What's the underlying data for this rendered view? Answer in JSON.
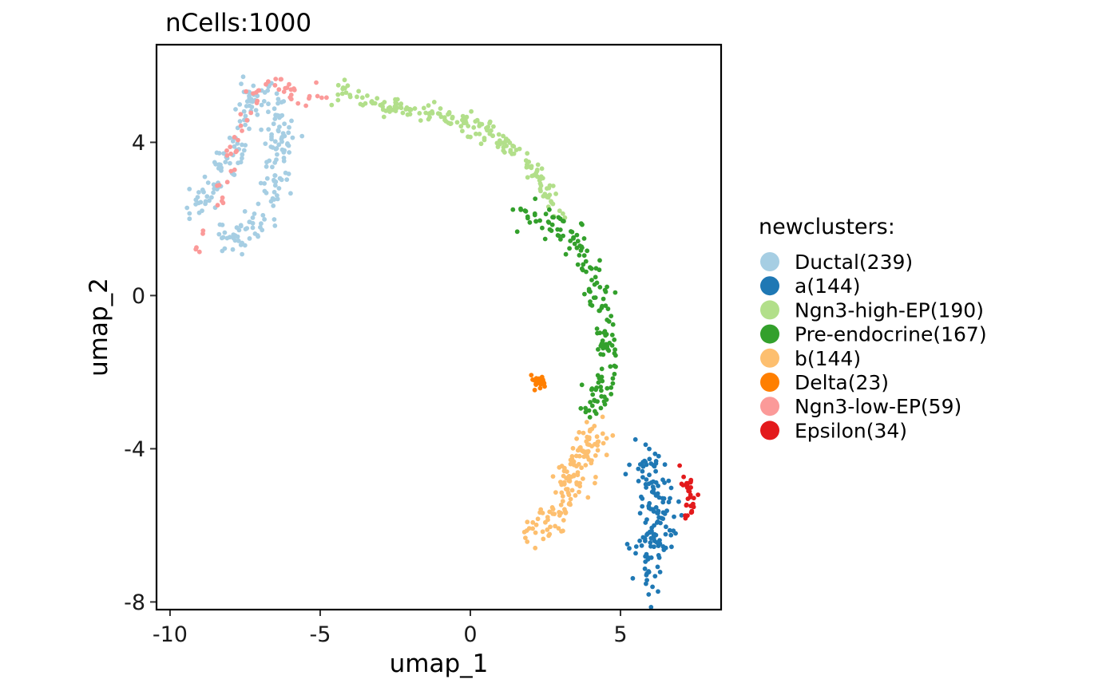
{
  "chart_data": {
    "type": "scatter",
    "title": "nCells:1000",
    "xlabel": "umap_1",
    "ylabel": "umap_2",
    "xlim": [
      -10.45,
      8.35
    ],
    "ylim": [
      -8.2,
      6.55
    ],
    "xticks": [
      {
        "value": -10,
        "label": "-10"
      },
      {
        "value": -5,
        "label": "-5"
      },
      {
        "value": 0,
        "label": "0"
      },
      {
        "value": 5,
        "label": "5"
      }
    ],
    "yticks": [
      {
        "value": -8,
        "label": "-8"
      },
      {
        "value": -4,
        "label": "-4"
      },
      {
        "value": 0,
        "label": "0"
      },
      {
        "value": 4,
        "label": "4"
      }
    ],
    "grid": false,
    "legend": {
      "title": "newclusters:",
      "placement": "right"
    },
    "series": [
      {
        "name": "Ductal(239)",
        "color": "#A6CEE3",
        "count": 239,
        "path": [
          [
            -9.3,
            2.3
          ],
          [
            -8.8,
            2.6
          ],
          [
            -8.3,
            3.3
          ],
          [
            -7.8,
            3.6
          ],
          [
            -7.5,
            4.6
          ],
          [
            -7.2,
            5.3
          ],
          [
            -6.6,
            5.2
          ],
          [
            -6.3,
            4.4
          ],
          [
            -6.5,
            3.1
          ],
          [
            -6.9,
            2.1
          ],
          [
            -7.6,
            1.5
          ],
          [
            -8.5,
            1.5
          ]
        ],
        "spread": 0.22
      },
      {
        "name": "a(144)",
        "color": "#1F78B4",
        "count": 144,
        "path": [
          [
            5.6,
            -4.2
          ],
          [
            6.1,
            -4.8
          ],
          [
            6.3,
            -5.5
          ],
          [
            6.1,
            -6.2
          ],
          [
            6.0,
            -6.9
          ],
          [
            5.9,
            -7.4
          ]
        ],
        "spread": 0.3
      },
      {
        "name": "Ngn3-high-EP(190)",
        "color": "#B2DF8A",
        "count": 190,
        "path": [
          [
            -4.5,
            5.3
          ],
          [
            -3.5,
            5.05
          ],
          [
            -2.0,
            4.85
          ],
          [
            -0.5,
            4.6
          ],
          [
            0.8,
            4.15
          ],
          [
            1.8,
            3.6
          ],
          [
            2.5,
            2.8
          ],
          [
            2.9,
            2.2
          ]
        ],
        "spread": 0.13
      },
      {
        "name": "Pre-endocrine(167)",
        "color": "#33A02C",
        "count": 167,
        "path": [
          [
            1.8,
            2.1
          ],
          [
            3.2,
            1.7
          ],
          [
            3.6,
            1.1
          ],
          [
            4.0,
            0.5
          ],
          [
            4.3,
            -0.3
          ],
          [
            4.55,
            -1.2
          ],
          [
            4.65,
            -2.1
          ],
          [
            4.2,
            -2.8
          ],
          [
            3.8,
            -3.0
          ]
        ],
        "spread": 0.22
      },
      {
        "name": "b(144)",
        "color": "#FDBF6F",
        "count": 144,
        "path": [
          [
            4.4,
            -3.5
          ],
          [
            3.8,
            -4.0
          ],
          [
            3.4,
            -4.8
          ],
          [
            3.0,
            -5.5
          ],
          [
            2.4,
            -6.0
          ],
          [
            1.9,
            -6.3
          ]
        ],
        "spread": 0.26
      },
      {
        "name": "Delta(23)",
        "color": "#FF7F00",
        "count": 23,
        "path": [
          [
            2.0,
            -2.4
          ],
          [
            2.25,
            -2.2
          ],
          [
            2.5,
            -2.4
          ]
        ],
        "spread": 0.08
      },
      {
        "name": "Ngn3-low-EP(59)",
        "color": "#FB9A99",
        "count": 59,
        "path": [
          [
            -9.2,
            1.2
          ],
          [
            -8.7,
            1.7
          ],
          [
            -7.2,
            5.4
          ],
          [
            -6.5,
            5.6
          ],
          [
            -5.5,
            5.1
          ],
          [
            -4.8,
            5.3
          ]
        ],
        "spread": 0.14
      },
      {
        "name": "Epsilon(34)",
        "color": "#E31A1C",
        "count": 34,
        "path": [
          [
            7.1,
            -4.6
          ],
          [
            7.35,
            -5.3
          ],
          [
            7.15,
            -6.0
          ]
        ],
        "spread": 0.13
      }
    ]
  }
}
